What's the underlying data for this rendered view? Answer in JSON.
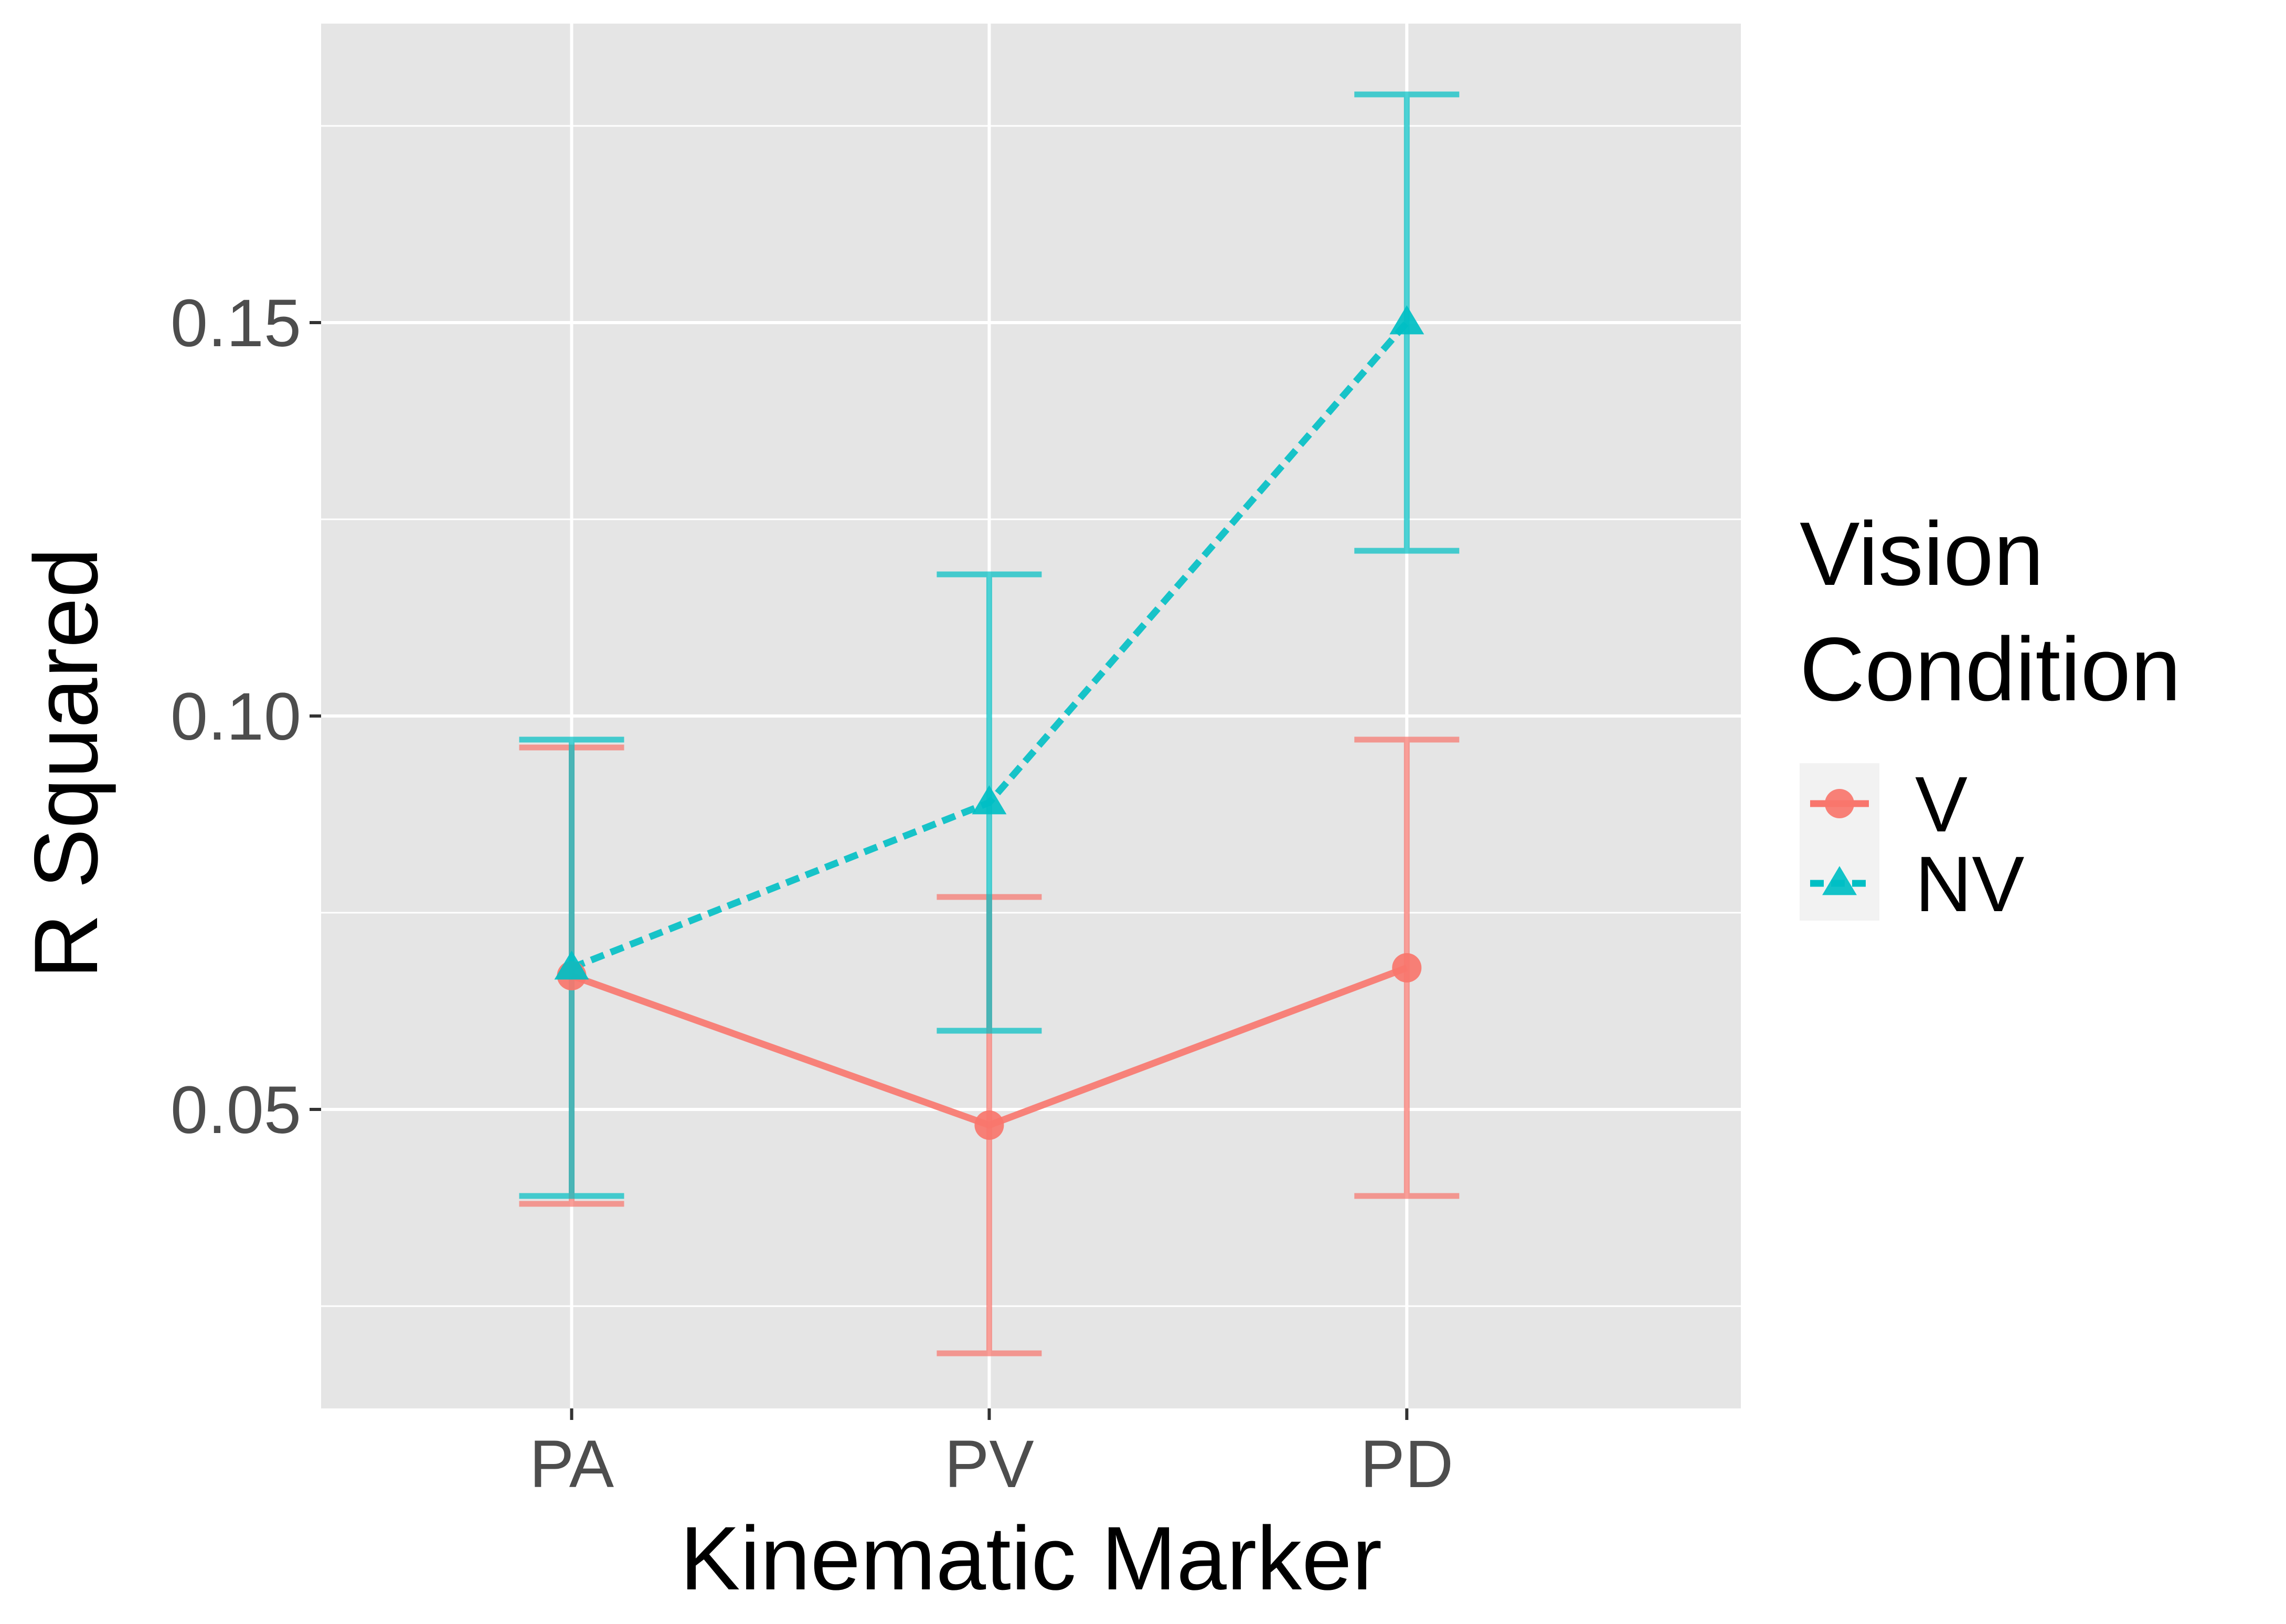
{
  "chart_data": {
    "type": "line",
    "title": "",
    "xlabel": "Kinematic Marker",
    "ylabel": "R Squared",
    "categories": [
      "PA",
      "PV",
      "PD"
    ],
    "ylim": [
      0.012,
      0.188
    ],
    "yticks": [
      0.05,
      0.1,
      0.15
    ],
    "ytick_labels": [
      "0.05",
      "0.10",
      "0.15"
    ],
    "grid": true,
    "legend": {
      "title_lines": [
        "Vision",
        "Condition"
      ],
      "position": "right"
    },
    "series": [
      {
        "name": "V",
        "color": "#F8766D",
        "marker": "circle",
        "linestyle": "solid",
        "values": [
          0.067,
          0.048,
          0.068
        ],
        "error_low": [
          0.038,
          0.019,
          0.039
        ],
        "error_high": [
          0.096,
          0.077,
          0.097
        ]
      },
      {
        "name": "NV",
        "color": "#00BFC4",
        "marker": "triangle",
        "linestyle": "dashed",
        "values": [
          0.068,
          0.089,
          0.15
        ],
        "error_low": [
          0.039,
          0.06,
          0.121
        ],
        "error_high": [
          0.097,
          0.118,
          0.179
        ]
      }
    ],
    "colors": {
      "panel_background": "#E5E5E5",
      "grid": "#FFFFFF"
    }
  }
}
